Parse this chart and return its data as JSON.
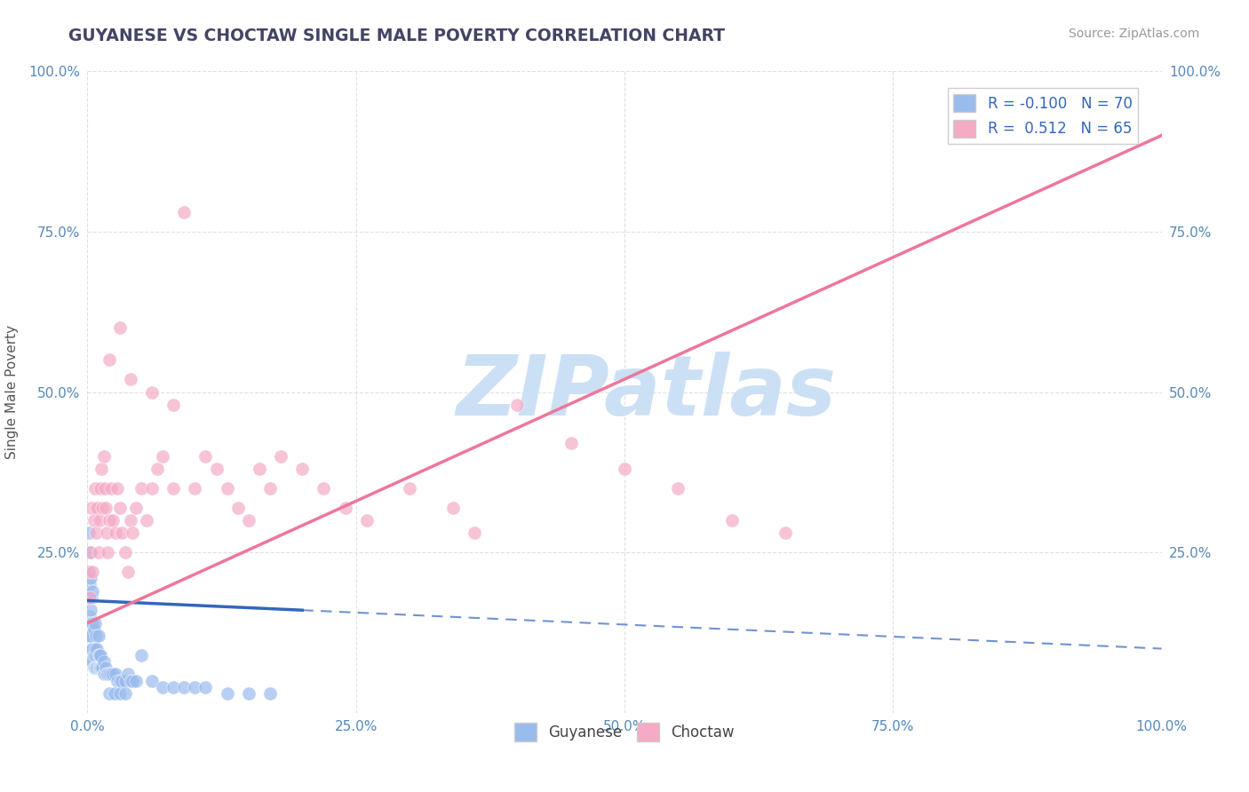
{
  "title": "GUYANESE VS CHOCTAW SINGLE MALE POVERTY CORRELATION CHART",
  "source": "Source: ZipAtlas.com",
  "ylabel": "Single Male Poverty",
  "xlim": [
    0.0,
    1.0
  ],
  "ylim": [
    0.0,
    1.0
  ],
  "x_tick_vals": [
    0.0,
    0.25,
    0.5,
    0.75,
    1.0
  ],
  "x_tick_labels": [
    "0.0%",
    "25.0%",
    "50.0%",
    "75.0%",
    "100.0%"
  ],
  "y_tick_vals": [
    0.0,
    0.25,
    0.5,
    0.75,
    1.0
  ],
  "y_tick_labels_left": [
    "",
    "25.0%",
    "50.0%",
    "75.0%",
    "100.0%"
  ],
  "y_tick_labels_right": [
    "",
    "25.0%",
    "50.0%",
    "75.0%",
    "100.0%"
  ],
  "guyanese_color": "#99bbee",
  "choctaw_color": "#f5aac5",
  "guyanese_line_color": "#3366bb",
  "choctaw_line_color": "#ee7799",
  "R_guyanese": -0.1,
  "N_guyanese": 70,
  "R_choctaw": 0.512,
  "N_choctaw": 65,
  "watermark_text": "ZIPatlas",
  "watermark_color": "#cce0f5",
  "background_color": "#ffffff",
  "grid_color": "#dddddd",
  "title_color": "#444466",
  "tick_color": "#5588bb",
  "label_color": "#3366bb",
  "guyanese_scatter_x": [
    0.001,
    0.001,
    0.001,
    0.002,
    0.002,
    0.002,
    0.002,
    0.003,
    0.003,
    0.003,
    0.003,
    0.004,
    0.004,
    0.004,
    0.005,
    0.005,
    0.005,
    0.005,
    0.006,
    0.006,
    0.006,
    0.007,
    0.007,
    0.007,
    0.008,
    0.008,
    0.008,
    0.009,
    0.009,
    0.01,
    0.01,
    0.01,
    0.011,
    0.011,
    0.012,
    0.012,
    0.013,
    0.014,
    0.015,
    0.015,
    0.016,
    0.017,
    0.018,
    0.019,
    0.02,
    0.022,
    0.024,
    0.026,
    0.028,
    0.03,
    0.032,
    0.035,
    0.038,
    0.04,
    0.042,
    0.045,
    0.05,
    0.06,
    0.07,
    0.08,
    0.09,
    0.1,
    0.11,
    0.13,
    0.15,
    0.17,
    0.02,
    0.025,
    0.03,
    0.035
  ],
  "guyanese_scatter_y": [
    0.18,
    0.22,
    0.28,
    0.12,
    0.15,
    0.2,
    0.25,
    0.08,
    0.12,
    0.16,
    0.21,
    0.1,
    0.14,
    0.18,
    0.08,
    0.1,
    0.14,
    0.19,
    0.07,
    0.09,
    0.13,
    0.07,
    0.1,
    0.14,
    0.07,
    0.09,
    0.12,
    0.07,
    0.1,
    0.07,
    0.09,
    0.12,
    0.07,
    0.09,
    0.07,
    0.09,
    0.07,
    0.07,
    0.06,
    0.08,
    0.06,
    0.07,
    0.06,
    0.06,
    0.06,
    0.06,
    0.06,
    0.06,
    0.05,
    0.05,
    0.05,
    0.05,
    0.06,
    0.05,
    0.05,
    0.05,
    0.09,
    0.05,
    0.04,
    0.04,
    0.04,
    0.04,
    0.04,
    0.03,
    0.03,
    0.03,
    0.03,
    0.03,
    0.03,
    0.03
  ],
  "choctaw_scatter_x": [
    0.001,
    0.002,
    0.003,
    0.004,
    0.005,
    0.006,
    0.007,
    0.008,
    0.009,
    0.01,
    0.011,
    0.012,
    0.013,
    0.014,
    0.015,
    0.016,
    0.017,
    0.018,
    0.019,
    0.02,
    0.022,
    0.024,
    0.026,
    0.028,
    0.03,
    0.032,
    0.035,
    0.038,
    0.04,
    0.042,
    0.045,
    0.05,
    0.055,
    0.06,
    0.065,
    0.07,
    0.08,
    0.09,
    0.1,
    0.11,
    0.12,
    0.13,
    0.14,
    0.15,
    0.16,
    0.17,
    0.18,
    0.2,
    0.22,
    0.24,
    0.26,
    0.3,
    0.34,
    0.36,
    0.4,
    0.45,
    0.5,
    0.55,
    0.6,
    0.65,
    0.02,
    0.03,
    0.04,
    0.06,
    0.08
  ],
  "choctaw_scatter_y": [
    0.22,
    0.18,
    0.25,
    0.32,
    0.22,
    0.3,
    0.35,
    0.28,
    0.32,
    0.25,
    0.3,
    0.35,
    0.38,
    0.32,
    0.4,
    0.35,
    0.32,
    0.28,
    0.25,
    0.3,
    0.35,
    0.3,
    0.28,
    0.35,
    0.32,
    0.28,
    0.25,
    0.22,
    0.3,
    0.28,
    0.32,
    0.35,
    0.3,
    0.35,
    0.38,
    0.4,
    0.35,
    0.78,
    0.35,
    0.4,
    0.38,
    0.35,
    0.32,
    0.3,
    0.38,
    0.35,
    0.4,
    0.38,
    0.35,
    0.32,
    0.3,
    0.35,
    0.32,
    0.28,
    0.48,
    0.42,
    0.38,
    0.35,
    0.3,
    0.28,
    0.55,
    0.6,
    0.52,
    0.5,
    0.48
  ],
  "g_line_x0": 0.0,
  "g_line_x_end_solid": 0.2,
  "g_line_x_end_dash": 1.0,
  "g_intercept": 0.175,
  "g_slope": -0.075,
  "c_line_x0": 0.0,
  "c_line_x1": 1.0,
  "c_intercept": 0.14,
  "c_slope": 0.76
}
